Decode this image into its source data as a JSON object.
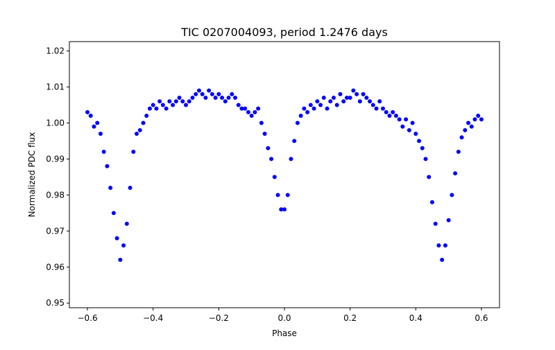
{
  "chart_data": {
    "type": "scatter",
    "title": "TIC 0207004093, period 1.2476 days",
    "xlabel": "Phase",
    "ylabel": "Normalized PDC flux",
    "xlim": [
      -0.655,
      0.655
    ],
    "ylim": [
      0.9487,
      1.0226
    ],
    "xticks": [
      -0.6,
      -0.4,
      -0.2,
      0.0,
      0.2,
      0.4,
      0.6
    ],
    "xtick_labels": [
      "−0.6",
      "−0.4",
      "−0.2",
      "0.0",
      "0.2",
      "0.4",
      "0.6"
    ],
    "yticks": [
      0.95,
      0.96,
      0.97,
      0.98,
      0.99,
      1.0,
      1.01,
      1.02
    ],
    "ytick_labels": [
      "0.95",
      "0.96",
      "0.97",
      "0.98",
      "0.99",
      "1.00",
      "1.01",
      "1.02"
    ],
    "grid": false,
    "marker_color": "#0000ff",
    "series": [
      {
        "name": "flux",
        "x": [
          -0.6,
          -0.59,
          -0.58,
          -0.57,
          -0.56,
          -0.55,
          -0.54,
          -0.53,
          -0.52,
          -0.51,
          -0.5,
          -0.49,
          -0.48,
          -0.47,
          -0.46,
          -0.45,
          -0.44,
          -0.43,
          -0.42,
          -0.41,
          -0.4,
          -0.39,
          -0.38,
          -0.37,
          -0.36,
          -0.35,
          -0.34,
          -0.33,
          -0.32,
          -0.31,
          -0.3,
          -0.29,
          -0.28,
          -0.27,
          -0.26,
          -0.25,
          -0.24,
          -0.23,
          -0.22,
          -0.21,
          -0.2,
          -0.19,
          -0.18,
          -0.17,
          -0.16,
          -0.15,
          -0.14,
          -0.13,
          -0.12,
          -0.11,
          -0.1,
          -0.09,
          -0.08,
          -0.07,
          -0.06,
          -0.05,
          -0.04,
          -0.03,
          -0.02,
          -0.01,
          0.0,
          0.01,
          0.02,
          0.03,
          0.04,
          0.05,
          0.06,
          0.07,
          0.08,
          0.09,
          0.1,
          0.11,
          0.12,
          0.13,
          0.14,
          0.15,
          0.16,
          0.17,
          0.18,
          0.19,
          0.2,
          0.21,
          0.22,
          0.23,
          0.24,
          0.25,
          0.26,
          0.27,
          0.28,
          0.29,
          0.3,
          0.31,
          0.32,
          0.33,
          0.34,
          0.35,
          0.36,
          0.37,
          0.38,
          0.39,
          0.4,
          0.41,
          0.42,
          0.43,
          0.44,
          0.45,
          0.46,
          0.47,
          0.48,
          0.49,
          0.5,
          0.51,
          0.52,
          0.53,
          0.54,
          0.55,
          0.56,
          0.57,
          0.58,
          0.59,
          0.6
        ],
        "y": [
          1.003,
          1.002,
          0.999,
          1.0,
          0.997,
          0.992,
          0.988,
          0.982,
          0.975,
          0.968,
          0.962,
          0.966,
          0.972,
          0.982,
          0.992,
          0.997,
          0.998,
          1.0,
          1.002,
          1.004,
          1.005,
          1.004,
          1.006,
          1.005,
          1.004,
          1.006,
          1.005,
          1.006,
          1.007,
          1.006,
          1.005,
          1.006,
          1.007,
          1.008,
          1.009,
          1.008,
          1.007,
          1.009,
          1.008,
          1.007,
          1.008,
          1.007,
          1.006,
          1.007,
          1.008,
          1.007,
          1.005,
          1.004,
          1.004,
          1.003,
          1.002,
          1.003,
          1.004,
          1.0,
          0.997,
          0.993,
          0.99,
          0.985,
          0.98,
          0.976,
          0.976,
          0.98,
          0.99,
          0.995,
          1.0,
          1.002,
          1.004,
          1.003,
          1.005,
          1.004,
          1.006,
          1.005,
          1.007,
          1.004,
          1.006,
          1.007,
          1.005,
          1.008,
          1.006,
          1.007,
          1.007,
          1.009,
          1.008,
          1.006,
          1.008,
          1.007,
          1.006,
          1.005,
          1.004,
          1.006,
          1.004,
          1.003,
          1.002,
          1.003,
          1.002,
          1.001,
          0.999,
          1.001,
          0.998,
          1.0,
          0.997,
          0.995,
          0.993,
          0.99,
          0.985,
          0.978,
          0.972,
          0.966,
          0.962,
          0.966,
          0.973,
          0.98,
          0.986,
          0.992,
          0.996,
          0.998,
          1.0,
          0.999,
          1.001,
          1.002,
          1.001
        ]
      }
    ]
  }
}
